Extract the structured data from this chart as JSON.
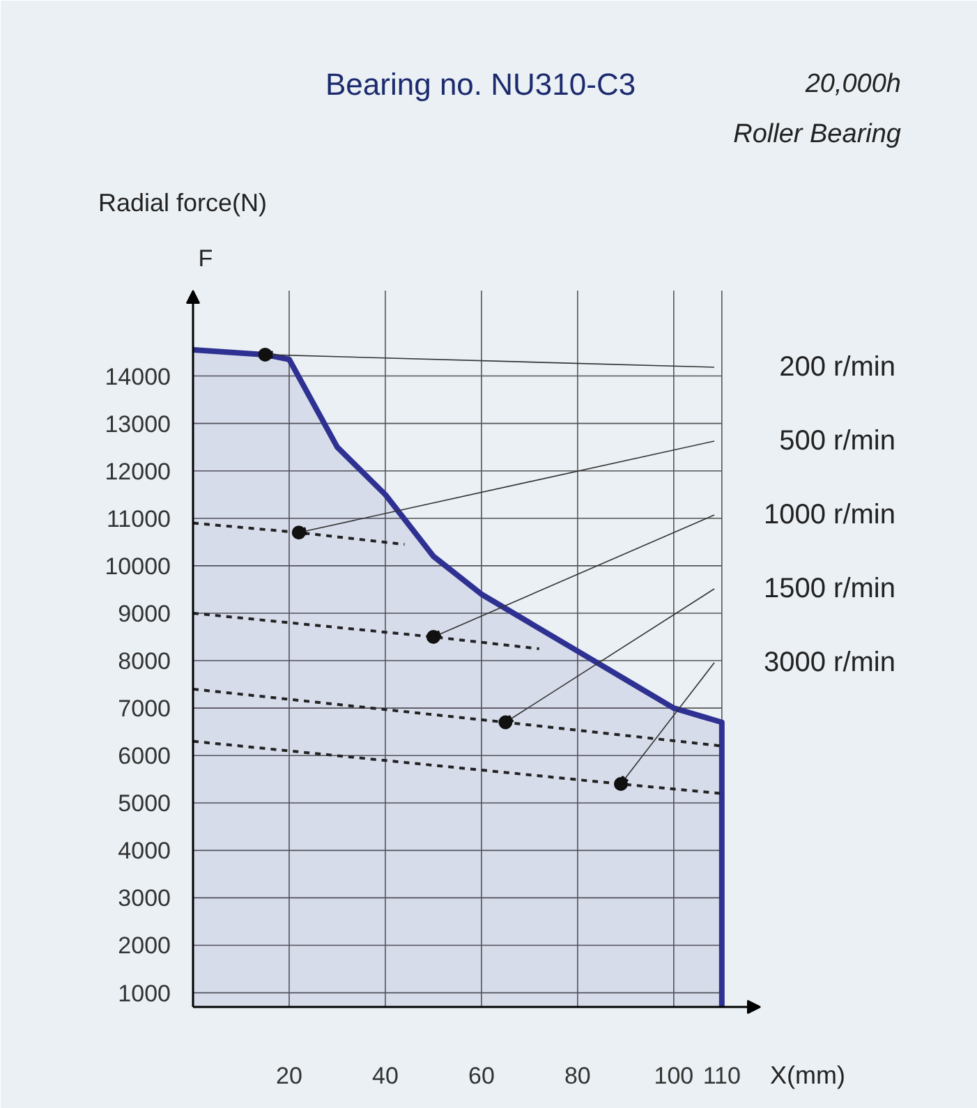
{
  "chart_data": {
    "type": "line",
    "title": "Bearing no. NU310-C3",
    "subtitle": "20,000h",
    "annotations": [
      "Roller Bearing",
      "F",
      "200 r/min",
      "500 r/min",
      "1000 r/min",
      "1500 r/min",
      "3000 r/min"
    ],
    "xlabel": "X(mm)",
    "ylabel": "Radial force(N)",
    "xlim": [
      0,
      118
    ],
    "ylim": [
      700,
      15800
    ],
    "xticks": [
      20,
      40,
      60,
      80,
      100,
      110
    ],
    "yticks": [
      1000,
      2000,
      3000,
      4000,
      5000,
      6000,
      7000,
      8000,
      9000,
      10000,
      11000,
      12000,
      13000,
      14000
    ],
    "grid": true,
    "series": [
      {
        "type": "area",
        "color": "#2e3192",
        "line_style": "solid",
        "x": [
          0,
          15,
          20,
          30,
          40,
          50,
          60,
          70,
          80,
          90,
          100,
          110,
          110
        ],
        "values": [
          14550,
          14450,
          14350,
          12500,
          11500,
          10200,
          9400,
          8800,
          8200,
          7600,
          7000,
          6700,
          700
        ]
      },
      {
        "color": "#222222",
        "line_style": "dashed",
        "x": [
          0,
          22,
          44
        ],
        "values": [
          10900,
          10700,
          10450
        ]
      },
      {
        "color": "#222222",
        "line_style": "dashed",
        "x": [
          0,
          50,
          72
        ],
        "values": [
          9000,
          8500,
          8250
        ]
      },
      {
        "color": "#222222",
        "line_style": "dashed",
        "x": [
          0,
          65,
          110
        ],
        "values": [
          7400,
          6700,
          6200
        ]
      },
      {
        "color": "#222222",
        "line_style": "dashed",
        "x": [
          0,
          89,
          110
        ],
        "values": [
          6300,
          5400,
          5200
        ]
      }
    ]
  }
}
